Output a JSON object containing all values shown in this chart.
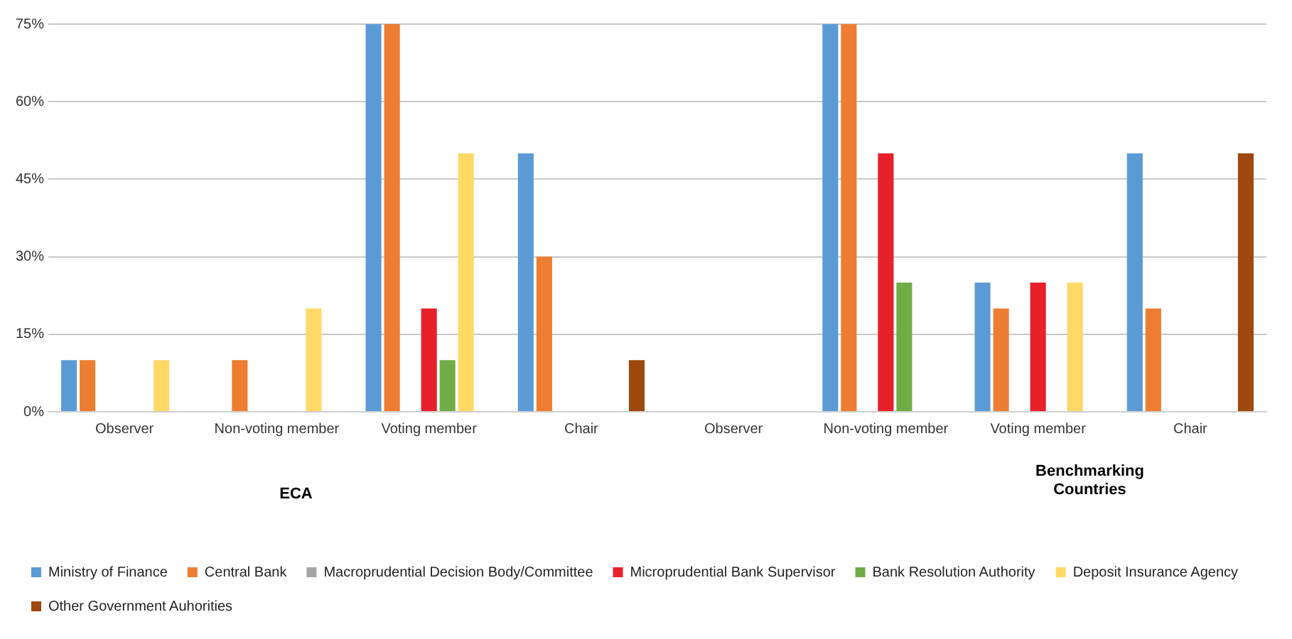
{
  "chart_data": {
    "type": "bar",
    "categories": [
      "Observer",
      "Non-voting member",
      "Voting member",
      "Chair",
      "Observer",
      "Non-voting member",
      "Voting member",
      "Chair"
    ],
    "series": [
      {
        "name": "Ministry of Finance",
        "color": "#5b9bd5",
        "values": [
          10,
          null,
          75,
          50,
          null,
          75,
          25,
          50
        ]
      },
      {
        "name": "Central Bank",
        "color": "#ed7d31",
        "values": [
          10,
          10,
          75,
          30,
          null,
          75,
          20,
          20
        ]
      },
      {
        "name": "Macroprudential Decision Body/Committee",
        "color": "#a5a5a5",
        "values": [
          null,
          null,
          null,
          null,
          null,
          null,
          null,
          null
        ]
      },
      {
        "name": "Microprudential Bank Supervisor",
        "color": "#e8202a",
        "values": [
          null,
          null,
          20,
          null,
          null,
          50,
          25,
          null
        ]
      },
      {
        "name": "Bank Resolution Authority",
        "color": "#70ad47",
        "values": [
          null,
          null,
          10,
          null,
          null,
          25,
          null,
          null
        ]
      },
      {
        "name": "Deposit Insurance Agency",
        "color": "#ffd966",
        "values": [
          10,
          20,
          50,
          null,
          null,
          null,
          25,
          null
        ]
      },
      {
        "name": "Other Government Auhorities",
        "color": "#9e480e",
        "values": [
          null,
          null,
          null,
          10,
          null,
          null,
          null,
          50
        ]
      }
    ],
    "ylim": [
      0,
      75
    ],
    "yticks": [
      {
        "value": 0,
        "label": "0%"
      },
      {
        "value": 15,
        "label": "15%"
      },
      {
        "value": 30,
        "label": "30%"
      },
      {
        "value": 45,
        "label": "45%"
      },
      {
        "value": 60,
        "label": "60%"
      },
      {
        "value": 75,
        "label": "75%"
      }
    ],
    "grid": "y",
    "legend": "bottom",
    "annotations": [
      "ECA",
      "Benchmarking Countries"
    ]
  }
}
